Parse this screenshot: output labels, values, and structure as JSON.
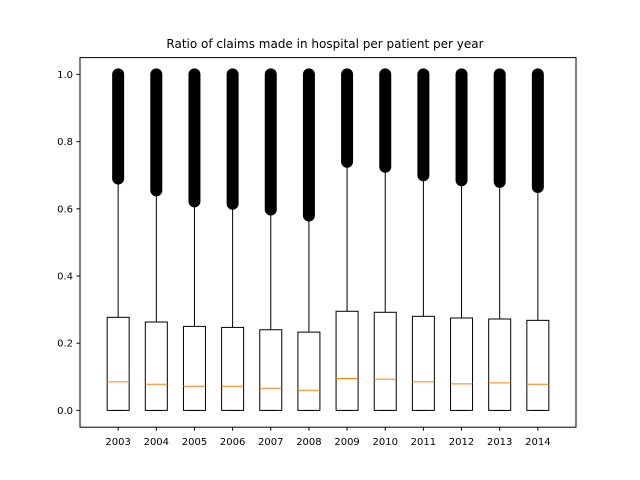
{
  "chart_data": {
    "type": "box",
    "title": "Ratio of claims made in hospital per patient per year",
    "xlabel": "",
    "ylabel": "",
    "ylim": [
      -0.05,
      1.05
    ],
    "yticks": [
      "0.0",
      "0.2",
      "0.4",
      "0.6",
      "0.8",
      "1.0"
    ],
    "categories": [
      "2003",
      "2004",
      "2005",
      "2006",
      "2007",
      "2008",
      "2009",
      "2010",
      "2011",
      "2012",
      "2013",
      "2014"
    ],
    "boxes": [
      {
        "category": "2003",
        "whisker_low": 0.0,
        "q1": 0.0,
        "median": 0.085,
        "q3": 0.277,
        "whisker_high": 0.69,
        "outliers_min": 0.69,
        "outliers_max": 1.0
      },
      {
        "category": "2004",
        "whisker_low": 0.0,
        "q1": 0.0,
        "median": 0.078,
        "q3": 0.263,
        "whisker_high": 0.655,
        "outliers_min": 0.655,
        "outliers_max": 1.0
      },
      {
        "category": "2005",
        "whisker_low": 0.0,
        "q1": 0.0,
        "median": 0.072,
        "q3": 0.25,
        "whisker_high": 0.622,
        "outliers_min": 0.622,
        "outliers_max": 1.0
      },
      {
        "category": "2006",
        "whisker_low": 0.0,
        "q1": 0.0,
        "median": 0.072,
        "q3": 0.247,
        "whisker_high": 0.615,
        "outliers_min": 0.615,
        "outliers_max": 1.0
      },
      {
        "category": "2007",
        "whisker_low": 0.0,
        "q1": 0.0,
        "median": 0.066,
        "q3": 0.24,
        "whisker_high": 0.598,
        "outliers_min": 0.598,
        "outliers_max": 1.0
      },
      {
        "category": "2008",
        "whisker_low": 0.0,
        "q1": 0.0,
        "median": 0.06,
        "q3": 0.233,
        "whisker_high": 0.58,
        "outliers_min": 0.58,
        "outliers_max": 1.0
      },
      {
        "category": "2009",
        "whisker_low": 0.0,
        "q1": 0.0,
        "median": 0.095,
        "q3": 0.295,
        "whisker_high": 0.74,
        "outliers_min": 0.74,
        "outliers_max": 1.0
      },
      {
        "category": "2010",
        "whisker_low": 0.0,
        "q1": 0.0,
        "median": 0.093,
        "q3": 0.292,
        "whisker_high": 0.725,
        "outliers_min": 0.725,
        "outliers_max": 1.0
      },
      {
        "category": "2011",
        "whisker_low": 0.0,
        "q1": 0.0,
        "median": 0.085,
        "q3": 0.28,
        "whisker_high": 0.7,
        "outliers_min": 0.7,
        "outliers_max": 1.0
      },
      {
        "category": "2012",
        "whisker_low": 0.0,
        "q1": 0.0,
        "median": 0.079,
        "q3": 0.275,
        "whisker_high": 0.685,
        "outliers_min": 0.685,
        "outliers_max": 1.0
      },
      {
        "category": "2013",
        "whisker_low": 0.0,
        "q1": 0.0,
        "median": 0.082,
        "q3": 0.272,
        "whisker_high": 0.68,
        "outliers_min": 0.68,
        "outliers_max": 1.0
      },
      {
        "category": "2014",
        "whisker_low": 0.0,
        "q1": 0.0,
        "median": 0.078,
        "q3": 0.268,
        "whisker_high": 0.665,
        "outliers_min": 0.665,
        "outliers_max": 1.0
      }
    ],
    "grid": false,
    "colors": {
      "box": "#000000",
      "median": "#ff7f0e",
      "outliers": "#000000"
    }
  }
}
